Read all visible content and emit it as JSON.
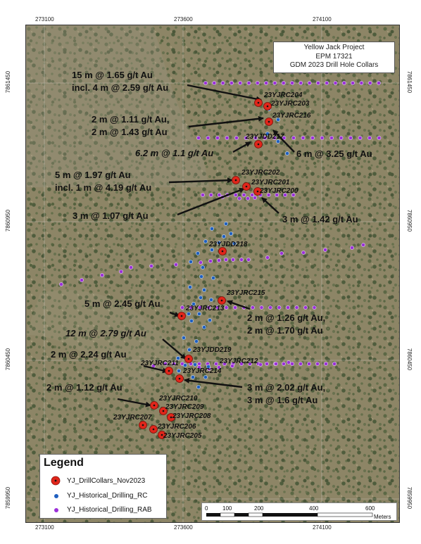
{
  "title": {
    "line1": "Yellow Jack Project",
    "line2": "EPM 17321",
    "line3": "GDM 2023 Drill Hole Collars"
  },
  "axes": {
    "x_ticks": [
      "273100",
      "273600",
      "274100"
    ],
    "y_ticks": [
      "7861450",
      "7860950",
      "7860450",
      "7859950"
    ]
  },
  "holes": [
    {
      "id": "23YJRC204"
    },
    {
      "id": "23YJRC203"
    },
    {
      "id": "23YJRC216"
    },
    {
      "id": "23YJDD217"
    },
    {
      "id": "23YJRC202"
    },
    {
      "id": "23YJRC201"
    },
    {
      "id": "23YJRC200"
    },
    {
      "id": "23YJDD218"
    },
    {
      "id": "23YJRC215"
    },
    {
      "id": "23YJRC213"
    },
    {
      "id": "23YJDD219"
    },
    {
      "id": "23YJRC211"
    },
    {
      "id": "23YJRC212"
    },
    {
      "id": "23YJRC214"
    },
    {
      "id": "23YJRC210"
    },
    {
      "id": "23YJRC209"
    },
    {
      "id": "23YJRC208"
    },
    {
      "id": "23YJRC207"
    },
    {
      "id": "23YJRC206"
    },
    {
      "id": "23YJRC205"
    }
  ],
  "intercepts": [
    {
      "line1": "15 m @ 1.65 g/t Au",
      "line2": "incl. 4 m @ 2.59 g/t Au"
    },
    {
      "line1": "2 m @ 1.11 g/t Au,",
      "line2": "2 m @ 1.43 g/t Au"
    },
    {
      "line1": "6.2 m @ 1.1 g/t Au"
    },
    {
      "line1": "6 m @ 3.25 g/t Au"
    },
    {
      "line1": "5 m @ 1.97 g/t Au",
      "line2": "incl. 1 m @ 4.19 g/t Au"
    },
    {
      "line1": "3 m @ 1.07 g/t Au"
    },
    {
      "line1": "3 m @ 1.42 g/t Au"
    },
    {
      "line1": "5 m @ 2.45 g/t Au"
    },
    {
      "line1": "2 m @ 1.26 g/t Au,",
      "line2": "2 m @ 1.70 g/t Au"
    },
    {
      "line1": "12 m @ 2.79 g/t Au"
    },
    {
      "line1": "2 m @ 2.24 g/t Au"
    },
    {
      "line1": "3 m @ 2.02 g/t Au,",
      "line2": "3 m @ 1.6 g/t Au"
    },
    {
      "line1": "2 m @ 1.12 g/t Au"
    }
  ],
  "legend": {
    "title": "Legend",
    "items": [
      {
        "label": "YJ_DrillCollars_Nov2023",
        "color": "#e0261b"
      },
      {
        "label": "YJ_Historical_Drilling_RC",
        "color": "#1f5fbf"
      },
      {
        "label": "YJ_Historical_Drilling_RAB",
        "color": "#9b30d9"
      }
    ]
  },
  "scalebar": {
    "labels": [
      "0",
      "100",
      "200",
      "400",
      "600"
    ],
    "unit": "Meters"
  }
}
